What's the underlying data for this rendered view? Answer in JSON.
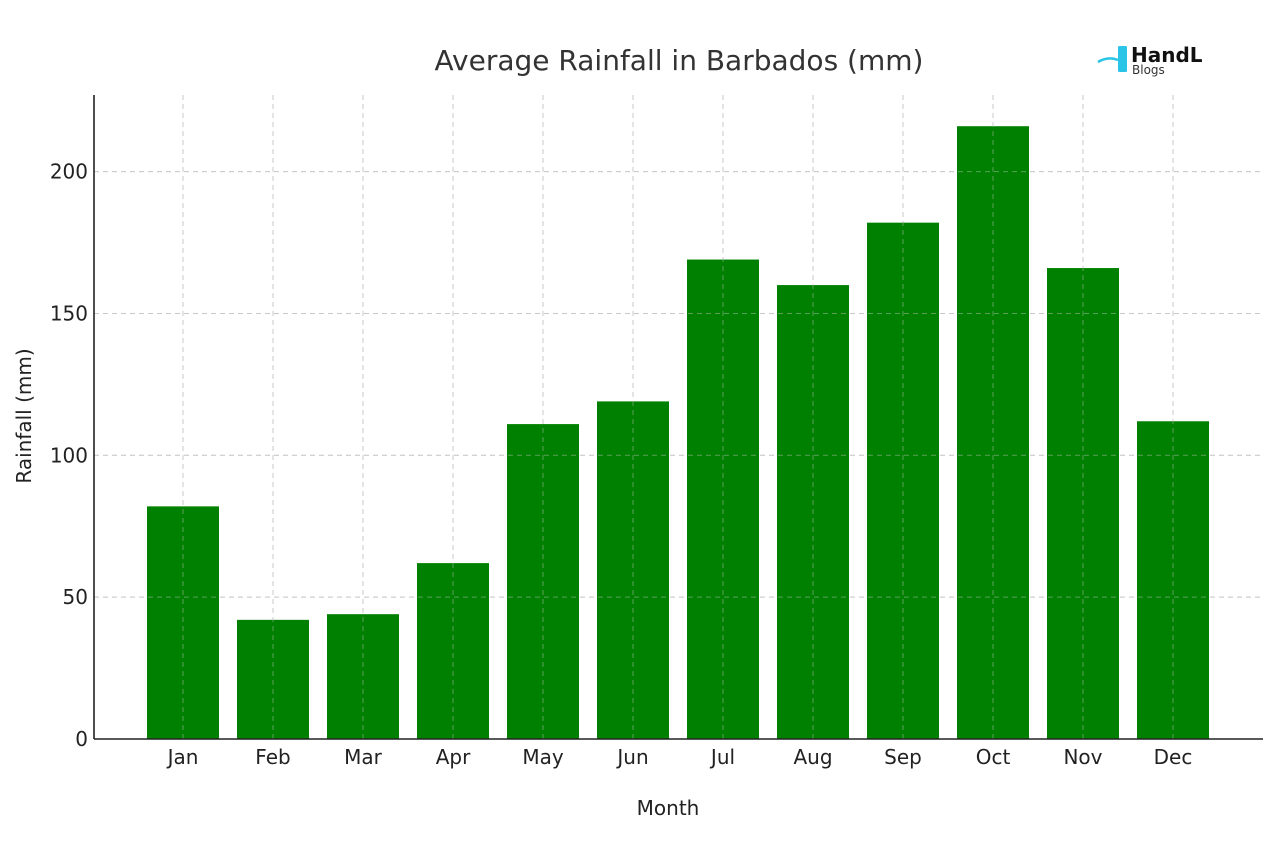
{
  "chart_data": {
    "type": "bar",
    "title": "Average Rainfall in Barbados (mm)",
    "xlabel": "Month",
    "ylabel": "Rainfall (mm)",
    "categories": [
      "Jan",
      "Feb",
      "Mar",
      "Apr",
      "May",
      "Jun",
      "Jul",
      "Aug",
      "Sep",
      "Oct",
      "Nov",
      "Dec"
    ],
    "values": [
      82,
      42,
      44,
      62,
      111,
      119,
      169,
      160,
      182,
      216,
      166,
      112
    ],
    "ylim": [
      0,
      227
    ],
    "yticks": [
      0,
      50,
      100,
      150,
      200
    ],
    "grid": true,
    "bar_color": "#008000"
  },
  "logo": {
    "name": "HandL",
    "sub": "Blogs",
    "accent": "#29c4e6"
  }
}
